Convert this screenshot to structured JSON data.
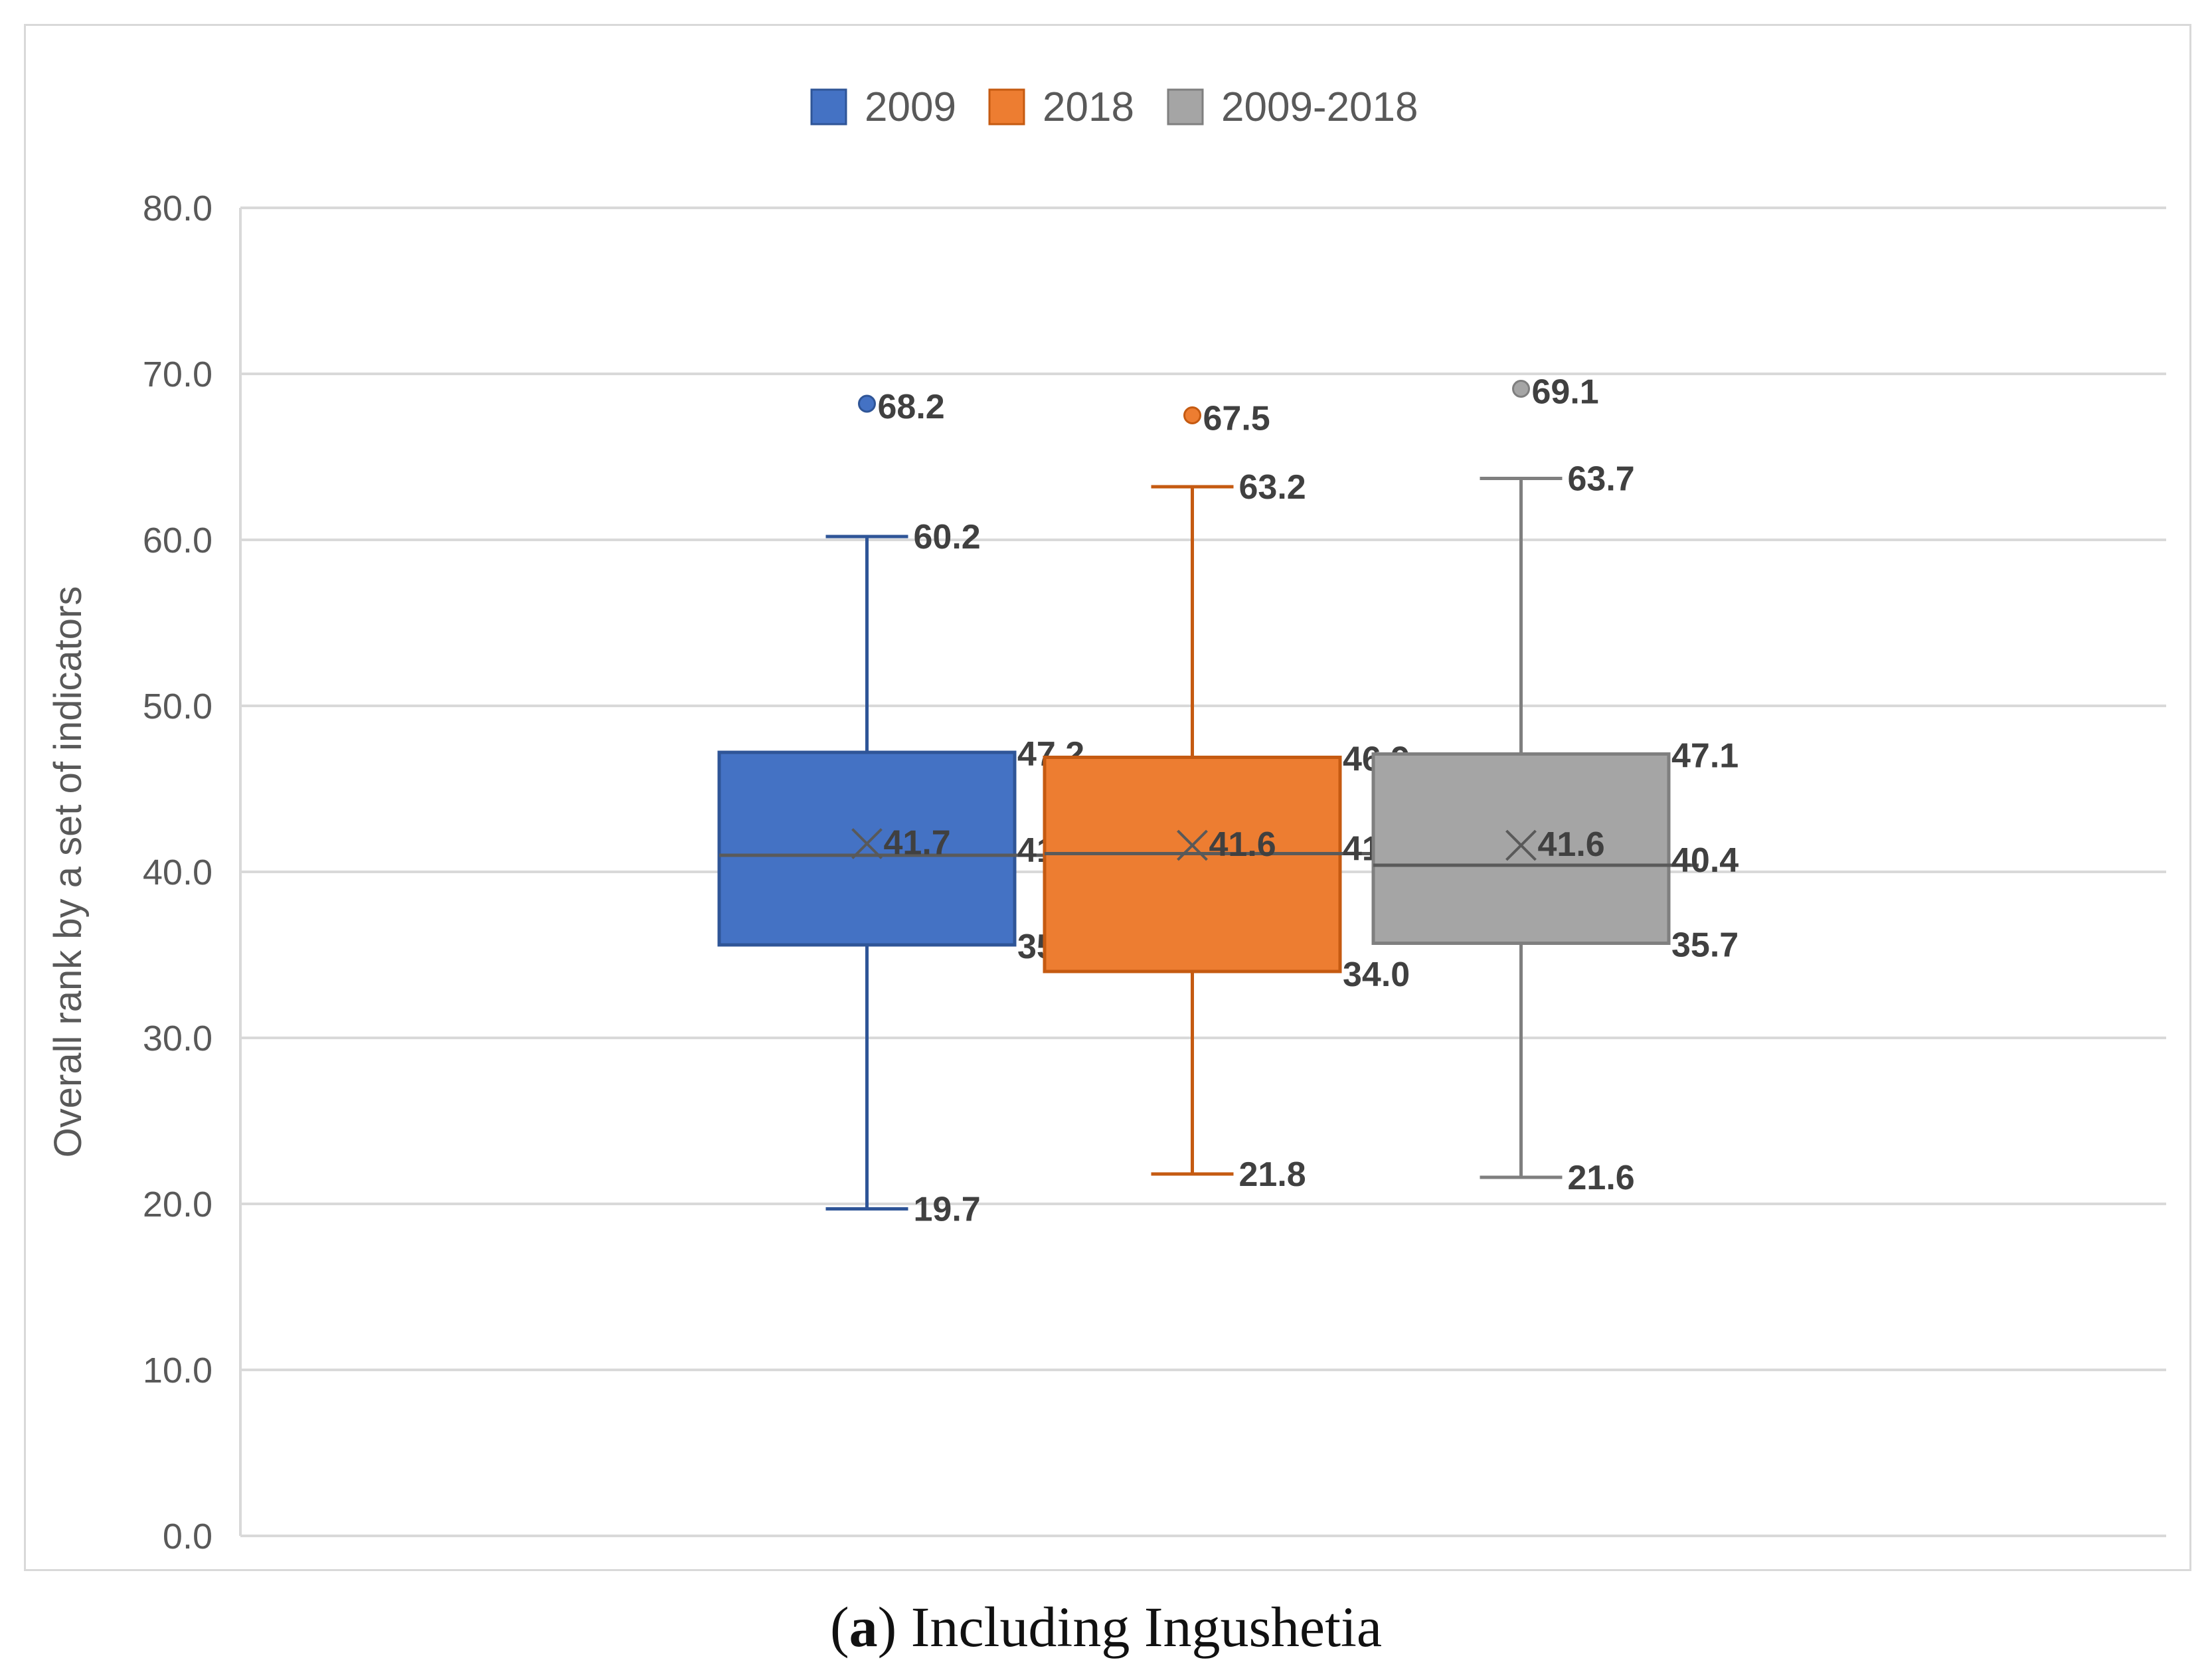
{
  "chart_data": {
    "type": "box",
    "ylabel": "Overall rank by a set of indicators",
    "ylim": [
      0,
      80
    ],
    "ytick_step": 10,
    "ytick_labels": [
      "0.0",
      "10.0",
      "20.0",
      "30.0",
      "40.0",
      "50.0",
      "60.0",
      "70.0",
      "80.0"
    ],
    "grid": true,
    "legend_position": "top-center",
    "series": [
      {
        "name": "2009",
        "color": "#4472C4",
        "edge": "#2F5597",
        "min": 19.7,
        "q1": 35.6,
        "median": 41.0,
        "q3": 47.2,
        "max": 60.2,
        "mean": 41.7,
        "outliers": [
          68.2
        ],
        "labels": {
          "min": "19.7",
          "q1": "35.6",
          "median": "41.0",
          "q3": "47.2",
          "max": "60.2",
          "mean": "41.7",
          "outliers": [
            "68.2"
          ]
        }
      },
      {
        "name": "2018",
        "color": "#ED7D31",
        "edge": "#C55A11",
        "min": 21.8,
        "q1": 34.0,
        "median": 41.1,
        "q3": 46.9,
        "max": 63.2,
        "mean": 41.6,
        "outliers": [
          67.5
        ],
        "labels": {
          "min": "21.8",
          "q1": "34.0",
          "median": "41.1",
          "q3": "46.9",
          "max": "63.2",
          "mean": "41.6",
          "outliers": [
            "67.5"
          ]
        }
      },
      {
        "name": "2009-2018",
        "color": "#A5A5A5",
        "edge": "#7F7F7F",
        "min": 21.6,
        "q1": 35.7,
        "median": 40.4,
        "q3": 47.1,
        "max": 63.7,
        "mean": 41.6,
        "outliers": [
          69.1
        ],
        "labels": {
          "min": "21.6",
          "q1": "35.7",
          "median": "40.4",
          "q3": "47.1",
          "max": "63.7",
          "mean": "41.6",
          "outliers": [
            "69.1"
          ]
        }
      }
    ],
    "gridline_color": "#d9d9d9",
    "tick_color": "#595959",
    "label_color": "#404040"
  },
  "caption": {
    "open": "(",
    "letter": "a",
    "rest": ") Including Ingushetia"
  }
}
